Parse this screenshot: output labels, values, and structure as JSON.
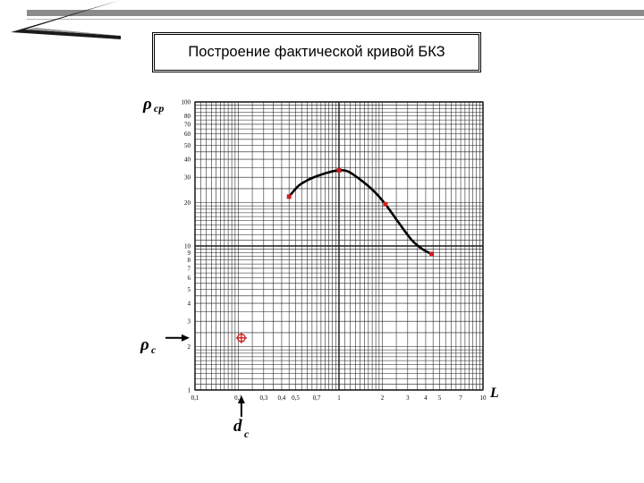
{
  "slide": {
    "title": "Построение фактической кривой БКЗ"
  },
  "colors": {
    "grid": "#1a1a1a",
    "curve": "#000000",
    "marker": "#cc2222",
    "accent_bar": "#8a8a8a"
  },
  "chart_data": {
    "type": "line",
    "x_scale": "log",
    "y_scale": "log",
    "xlim": [
      0.1,
      10
    ],
    "ylim": [
      1,
      100
    ],
    "grid": true,
    "xlabel_symbol": "L",
    "ylabel_symbol": "ρ",
    "ylabel_subscript": "cp",
    "x_tick_labels": [
      "0,1",
      "0,2",
      "0,3",
      "0,4",
      "0,5",
      "0,7",
      "1",
      "2",
      "3",
      "4",
      "5",
      "7",
      "10"
    ],
    "x_tick_values": [
      0.1,
      0.2,
      0.3,
      0.4,
      0.5,
      0.7,
      1,
      2,
      3,
      4,
      5,
      7,
      10
    ],
    "y_tick_labels": [
      "1",
      "2",
      "3",
      "4",
      "5",
      "6",
      "7",
      "8",
      "9",
      "10",
      "20",
      "30",
      "40",
      "50",
      "60",
      "70",
      "80",
      "100"
    ],
    "y_tick_values": [
      1,
      2,
      3,
      4,
      5,
      6,
      7,
      8,
      9,
      10,
      20,
      30,
      40,
      50,
      60,
      70,
      80,
      100
    ],
    "series": [
      {
        "x": [
          0.45,
          0.52,
          0.6,
          0.7,
          0.85,
          1.0,
          1.15,
          1.4,
          1.75,
          2.1,
          2.6,
          3.2,
          3.8,
          4.4
        ],
        "values": [
          22,
          26,
          28.5,
          30.5,
          32.5,
          33.5,
          33,
          29,
          24,
          19.5,
          14.5,
          11,
          9.5,
          8.8
        ]
      }
    ],
    "measured_points": {
      "x": [
        0.45,
        1.0,
        2.1,
        4.4
      ],
      "values": [
        22,
        33.5,
        19.5,
        8.8
      ]
    },
    "annotations": {
      "rho_c": {
        "symbol": "ρ",
        "subscript": "c",
        "value": 2.3
      },
      "d_c": {
        "symbol": "d",
        "subscript": "c",
        "value": 0.21
      }
    }
  }
}
